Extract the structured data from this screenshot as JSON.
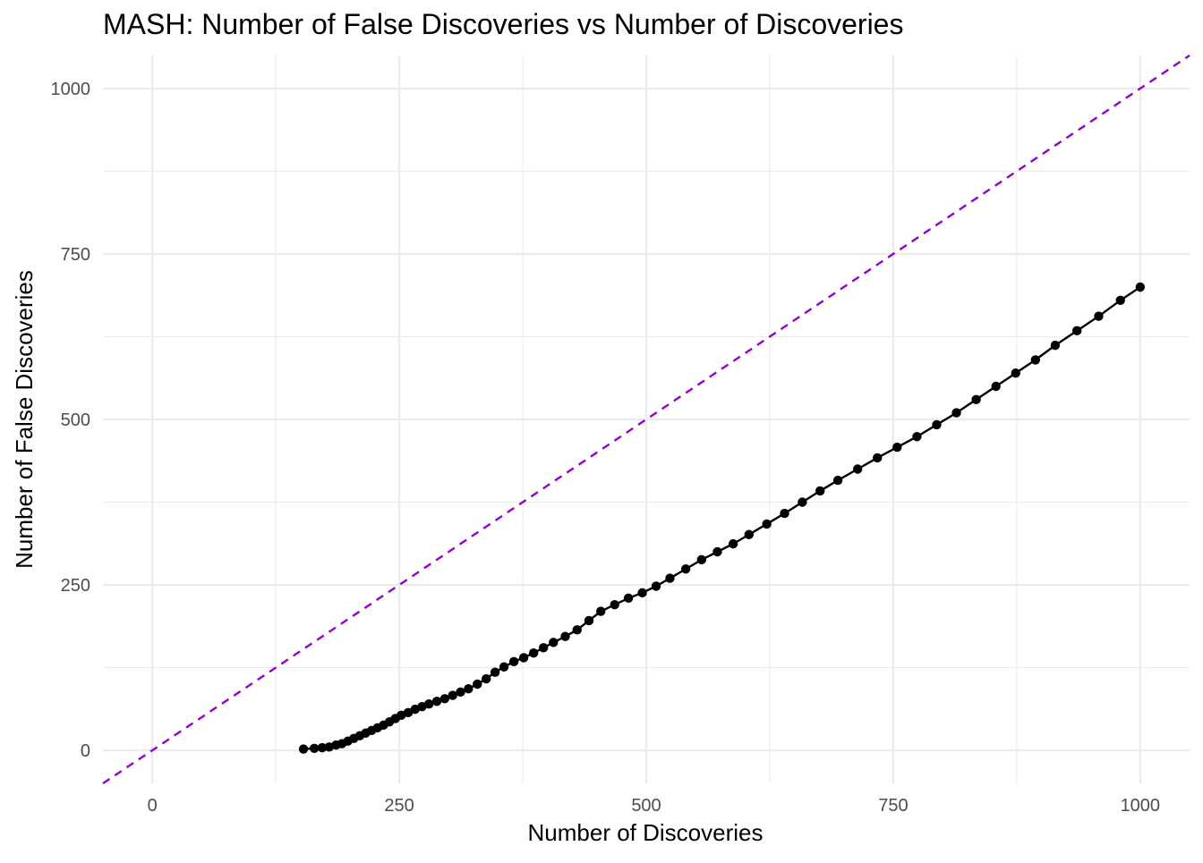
{
  "chart_data": {
    "type": "line",
    "title": "MASH: Number of False Discoveries vs Number of Discoveries",
    "xlabel": "Number of Discoveries",
    "ylabel": "Number of False Discoveries",
    "xlim": [
      -50,
      1050
    ],
    "ylim": [
      -50,
      1050
    ],
    "x_ticks": [
      0,
      250,
      500,
      750,
      1000
    ],
    "y_ticks": [
      0,
      250,
      500,
      750,
      1000
    ],
    "x_tick_labels": [
      "0",
      "250",
      "500",
      "750",
      "1000"
    ],
    "y_tick_labels": [
      "0",
      "250",
      "500",
      "750",
      "1000"
    ],
    "grid": true,
    "legend": "none",
    "colors": {
      "series": "#000000",
      "reference": "#9400d3",
      "grid": "#ebebeb"
    },
    "series": [
      {
        "x": [
          153,
          164,
          172,
          179,
          186,
          192,
          198,
          204,
          210,
          216,
          222,
          228,
          234,
          240,
          246,
          252,
          259,
          266,
          273,
          280,
          288,
          296,
          304,
          312,
          320,
          329,
          338,
          347,
          356,
          366,
          376,
          386,
          396,
          406,
          418,
          430,
          442,
          454,
          468,
          482,
          496,
          510,
          524,
          540,
          556,
          572,
          588,
          604,
          622,
          640,
          658,
          676,
          694,
          714,
          734,
          754,
          774,
          794,
          814,
          834,
          854,
          874,
          894,
          914,
          936,
          958,
          980,
          1000
        ],
        "y": [
          2,
          3,
          4,
          5,
          8,
          10,
          14,
          18,
          22,
          26,
          30,
          34,
          38,
          43,
          48,
          53,
          57,
          62,
          66,
          70,
          74,
          78,
          83,
          88,
          93,
          100,
          108,
          118,
          126,
          134,
          140,
          147,
          155,
          163,
          172,
          182,
          196,
          210,
          220,
          230,
          238,
          248,
          260,
          274,
          288,
          300,
          312,
          326,
          342,
          358,
          375,
          392,
          408,
          425,
          442,
          458,
          474,
          492,
          510,
          530,
          550,
          570,
          590,
          612,
          634,
          656,
          680,
          700
        ]
      }
    ],
    "reference_line": {
      "type": "y=x",
      "style": "dashed"
    }
  }
}
